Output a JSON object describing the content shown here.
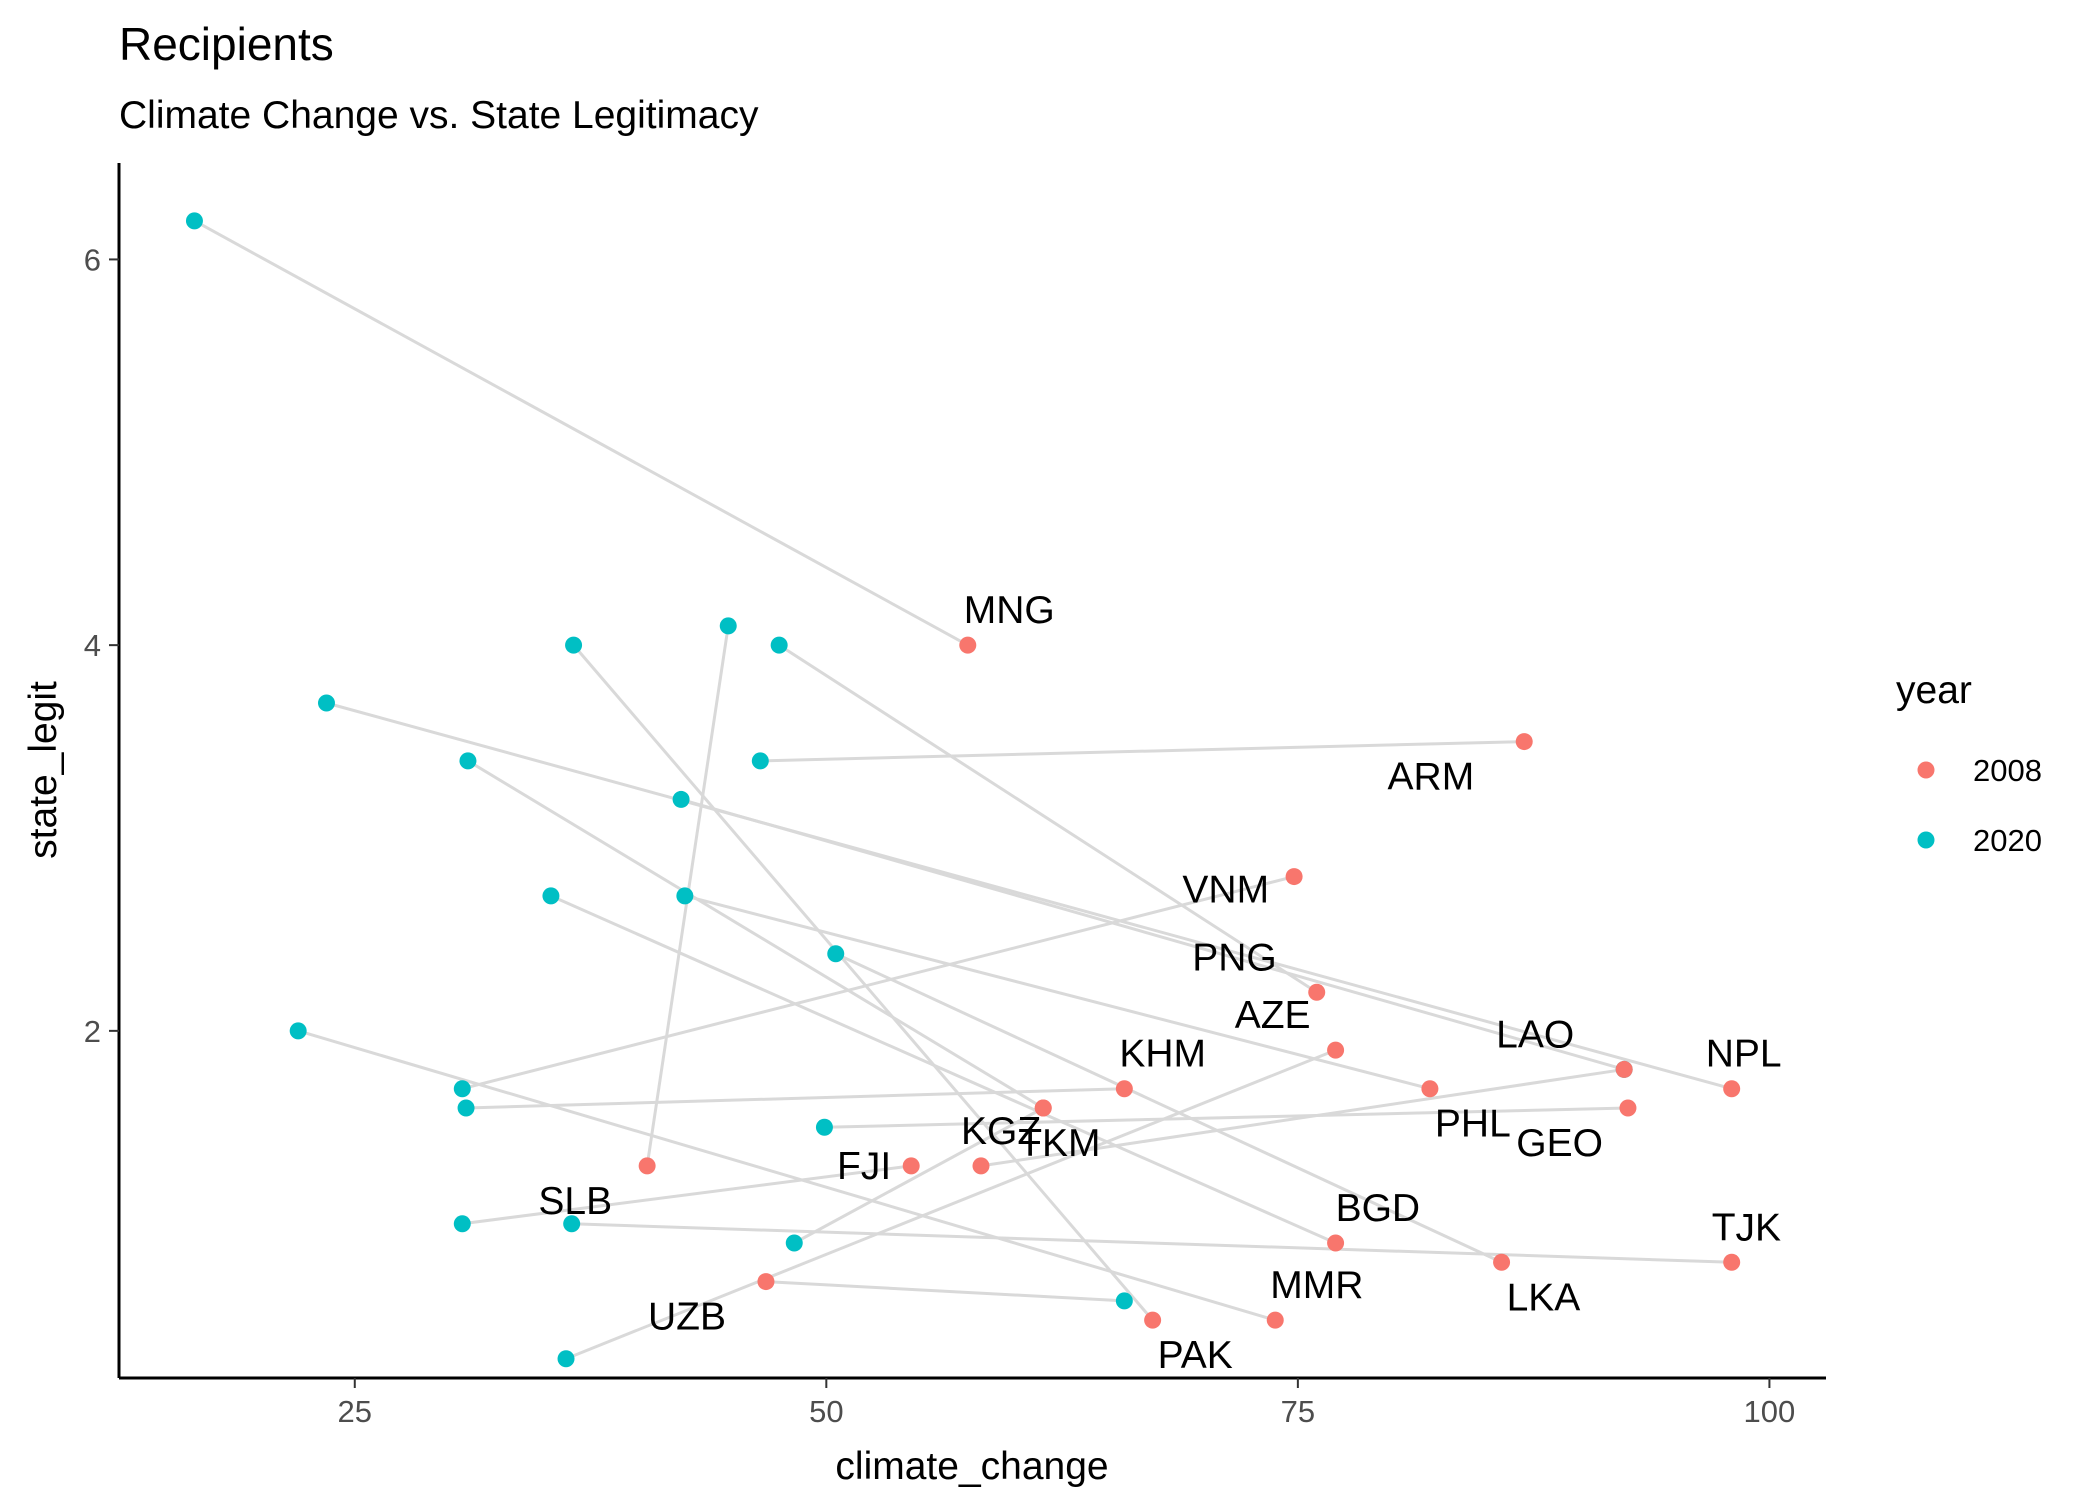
{
  "chart_data": {
    "type": "scatter",
    "title": "Recipients",
    "subtitle": "Climate Change vs. State Legitimacy",
    "xlabel": "climate_change",
    "ylabel": "state_legit",
    "xlim": [
      12.5,
      103
    ],
    "ylim": [
      0.2,
      6.5
    ],
    "x_ticks": [
      25,
      50,
      75,
      100
    ],
    "y_ticks": [
      2,
      4,
      6
    ],
    "grid": false,
    "legend": {
      "title": "year",
      "placement": "right"
    },
    "series": [
      {
        "name": "2008",
        "color": "#F8766D"
      },
      {
        "name": "2020",
        "color": "#00BFC4"
      }
    ],
    "segment_color": "#d9d9d9",
    "countries": [
      {
        "label": "MNG",
        "x2008": 57.5,
        "y2008": 4.0,
        "x2020": 16.5,
        "y2020": 6.2,
        "label_anchor": "above"
      },
      {
        "label": "ARM",
        "x2008": 87.0,
        "y2008": 3.5,
        "x2020": 46.5,
        "y2020": 3.4,
        "label_anchor": "below-left"
      },
      {
        "label": "VNM",
        "x2008": 74.8,
        "y2008": 2.8,
        "x2020": 30.7,
        "y2020": 1.7,
        "label_anchor": "left-below"
      },
      {
        "label": "PNG",
        "x2008": 76.0,
        "y2008": 2.2,
        "x2020": 47.5,
        "y2020": 4.0,
        "label_anchor": "above-left"
      },
      {
        "label": "AZE",
        "x2008": 77.0,
        "y2008": 1.9,
        "x2020": 36.2,
        "y2020": 0.3,
        "label_anchor": "above-left"
      },
      {
        "label": "KHM",
        "x2008": 65.8,
        "y2008": 1.7,
        "x2020": 30.9,
        "y2020": 1.6,
        "label_anchor": "above-right"
      },
      {
        "label": "LAO",
        "x2008": 92.3,
        "y2008": 1.8,
        "x2020": 42.3,
        "y2020": 3.2,
        "label_anchor": "above-left"
      },
      {
        "label": "NPL",
        "x2008": 98.0,
        "y2008": 1.7,
        "x2020": 23.5,
        "y2020": 3.7,
        "label_anchor": "above"
      },
      {
        "label": "PHL",
        "x2008": 82.0,
        "y2008": 1.7,
        "x2020": 42.5,
        "y2020": 2.7,
        "label_anchor": "below-right"
      },
      {
        "label": "GEO",
        "x2008": 92.5,
        "y2008": 1.6,
        "x2020": 49.9,
        "y2020": 1.5,
        "label_anchor": "below-left"
      },
      {
        "label": "KGZ",
        "x2008": 58.2,
        "y2008": 1.3,
        "x2020": 92.3,
        "y2020": 1.8,
        "label_anchor": "above"
      },
      {
        "label": "FJI",
        "x2008": 54.5,
        "y2008": 1.3,
        "x2020": 30.7,
        "y2020": 1.0,
        "label_anchor": "left"
      },
      {
        "label": "TKM",
        "x2008": 61.5,
        "y2008": 1.6,
        "x2020": 31.0,
        "y2020": 3.4,
        "label_anchor": "below"
      },
      {
        "label": "SLB",
        "x2008": 40.5,
        "y2008": 1.3,
        "x2020": 44.8,
        "y2020": 4.1,
        "label_anchor": "below-left"
      },
      {
        "label": "BGD",
        "x2008": 77.0,
        "y2008": 0.9,
        "x2020": 35.4,
        "y2020": 2.7,
        "label_anchor": "above-right"
      },
      {
        "label": "LKA",
        "x2008": 85.8,
        "y2008": 0.8,
        "x2020": 50.5,
        "y2020": 2.4,
        "label_anchor": "below-right"
      },
      {
        "label": "TJK",
        "x2008": 98.0,
        "y2008": 0.8,
        "x2020": 36.5,
        "y2020": 1.0,
        "label_anchor": "above"
      },
      {
        "label": "MMR",
        "x2008": 73.8,
        "y2008": 0.5,
        "x2020": 22.0,
        "y2020": 2.0,
        "label_anchor": "above-right"
      },
      {
        "label": "PAK",
        "x2008": 67.3,
        "y2008": 0.5,
        "x2020": 36.6,
        "y2020": 4.0,
        "label_anchor": "below-right"
      },
      {
        "label": "UZB",
        "x2008": 46.8,
        "y2008": 0.7,
        "x2020": 65.8,
        "y2020": 0.6,
        "label_anchor": "below-left"
      },
      {
        "label": "",
        "x2008": 61.5,
        "y2008": 1.6,
        "x2020": 48.3,
        "y2020": 0.9
      }
    ]
  }
}
